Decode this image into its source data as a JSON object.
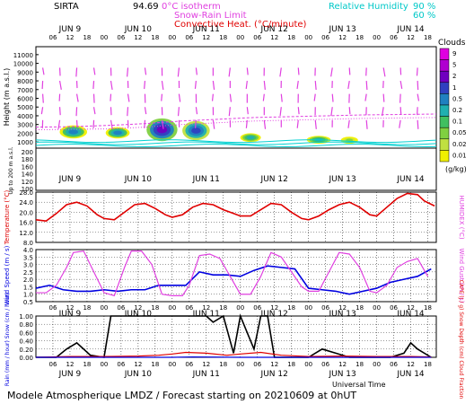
{
  "header": {
    "site": "SIRTA",
    "coord": "94.69",
    "isotherm_label": "0°C isotherm",
    "snow_rain_label": "Snow-Rain Limit",
    "convective_label": "Convective Heat. (°C/minute)",
    "rh_label": "Relative Humidity",
    "rh90": "90 %",
    "rh60": "60 %",
    "clouds_label": "Clouds",
    "clouds_unit": "(g/kg)"
  },
  "footer": {
    "model_text": "Modele Atmospherique LMDZ / Forecast starting on 20210609 at 0hUT",
    "time_axis_label": "Universal Time"
  },
  "colors": {
    "magenta": "#e040e0",
    "red": "#e00000",
    "blue": "#0000e0",
    "cyan": "#00d0d0",
    "black": "#000000"
  },
  "chart_data": [
    {
      "type": "heatmap",
      "panel": "clouds-wind-profile",
      "ylabel": "Height (m a.s.l.)",
      "ylabel_low": "Up to 200 m a.s.l.",
      "yticks_upper": [
        "11000",
        "10000",
        "9000",
        "8000",
        "7000",
        "6000",
        "5000",
        "4000",
        "3000",
        "2000",
        "1000"
      ],
      "yticks_lower": [
        "200",
        "180",
        "160",
        "140",
        "120",
        "100"
      ],
      "day_labels": [
        "JUN 9",
        "JUN 10",
        "JUN 11",
        "JUN 12",
        "JUN 13",
        "JUN 14"
      ],
      "hour_ticks": [
        "06",
        "12",
        "18",
        "00",
        "06",
        "12",
        "18",
        "00",
        "06",
        "12",
        "18",
        "00",
        "06",
        "12",
        "18",
        "00",
        "06",
        "12",
        "18",
        "00",
        "06",
        "12",
        "18"
      ],
      "cloud_scale": [
        "9",
        "5",
        "2",
        "1",
        "0.5",
        "0.2",
        "0.1",
        "0.05",
        "0.02",
        "0.01"
      ],
      "cloud_colors": [
        "#e000e0",
        "#b000d0",
        "#7000c0",
        "#3040c0",
        "#2080c0",
        "#20b0b0",
        "#40c060",
        "#80d040",
        "#c0e040",
        "#f0f000"
      ],
      "cloud_layers": [
        {
          "day": 0.55,
          "width": 0.35,
          "base_m": 1500,
          "top_m": 2800,
          "max_class": "0.5"
        },
        {
          "day": 1.2,
          "width": 0.3,
          "base_m": 1500,
          "top_m": 2600,
          "max_class": "0.5"
        },
        {
          "day": 1.85,
          "width": 0.4,
          "base_m": 1200,
          "top_m": 3600,
          "max_class": "2"
        },
        {
          "day": 2.35,
          "width": 0.35,
          "base_m": 1300,
          "top_m": 3300,
          "max_class": "1"
        },
        {
          "day": 3.15,
          "width": 0.25,
          "base_m": 1100,
          "top_m": 1900,
          "max_class": "0.2"
        },
        {
          "day": 4.15,
          "width": 0.3,
          "base_m": 900,
          "top_m": 1600,
          "max_class": "0.2"
        },
        {
          "day": 4.6,
          "width": 0.2,
          "base_m": 900,
          "top_m": 1500,
          "max_class": "0.05"
        }
      ],
      "isotherm_m": [
        2700,
        2750,
        2900,
        3100,
        3400,
        3600,
        3800,
        3900,
        4000,
        4100,
        4150,
        4200
      ],
      "snow_rain_m": [
        2400,
        2450,
        2500,
        2700,
        3000,
        3200,
        3400,
        3500,
        3600,
        3700,
        3750,
        3800
      ],
      "wind_heights_m": [
        9500,
        8000,
        6500,
        5000,
        3500
      ],
      "wind_times_day": [
        0.1,
        0.35,
        0.6,
        0.85,
        1.1,
        1.35,
        1.6,
        1.85,
        2.1,
        2.35,
        2.6,
        2.85,
        3.1,
        3.35,
        3.6,
        3.85,
        4.1,
        4.35,
        4.6,
        4.85,
        5.1,
        5.35,
        5.6
      ]
    },
    {
      "type": "line",
      "panel": "temperature",
      "ylabel": "Temperature (°C)",
      "ylabel_right": "HUMIDEX (°C)",
      "ylim": [
        8.0,
        28.0
      ],
      "yticks": [
        "28.0",
        "24.0",
        "20.0",
        "16.0",
        "12.0",
        "8.0"
      ],
      "series": [
        {
          "name": "Temperature",
          "x": [
            0.0,
            0.15,
            0.3,
            0.45,
            0.6,
            0.75,
            0.9,
            1.0,
            1.15,
            1.3,
            1.45,
            1.6,
            1.75,
            1.9,
            2.0,
            2.15,
            2.3,
            2.45,
            2.6,
            2.75,
            2.9,
            3.0,
            3.15,
            3.3,
            3.45,
            3.6,
            3.75,
            3.9,
            4.0,
            4.15,
            4.3,
            4.45,
            4.6,
            4.75,
            4.9,
            5.0,
            5.15,
            5.3,
            5.45,
            5.6,
            5.7,
            5.85
          ],
          "values": [
            17.0,
            16.5,
            19.5,
            23.0,
            24.0,
            22.5,
            19.0,
            17.5,
            17.0,
            20.0,
            23.0,
            23.5,
            21.5,
            19.0,
            18.0,
            19.0,
            22.0,
            23.5,
            23.0,
            21.0,
            19.5,
            18.5,
            18.5,
            21.0,
            23.5,
            23.0,
            20.0,
            17.5,
            17.0,
            18.5,
            21.0,
            23.0,
            24.0,
            22.0,
            19.0,
            18.5,
            22.0,
            25.5,
            27.5,
            27.0,
            24.5,
            22.5
          ]
        }
      ]
    },
    {
      "type": "line",
      "panel": "wind",
      "ylabel": "Wind Speed (m / s)",
      "ylabel_right": "Wind Gust (m / s)",
      "ylim": [
        0.5,
        4.0
      ],
      "yticks": [
        "4.0",
        "3.5",
        "3.0",
        "2.5",
        "2.0",
        "1.5",
        "1.0",
        "0.5"
      ],
      "series": [
        {
          "name": "Wind Speed",
          "x": [
            0.0,
            0.2,
            0.4,
            0.6,
            0.8,
            1.0,
            1.2,
            1.4,
            1.6,
            1.8,
            2.0,
            2.2,
            2.4,
            2.6,
            2.8,
            3.0,
            3.2,
            3.4,
            3.6,
            3.8,
            4.0,
            4.2,
            4.4,
            4.6,
            4.8,
            5.0,
            5.2,
            5.4,
            5.6,
            5.8
          ],
          "values": [
            1.4,
            1.6,
            1.3,
            1.2,
            1.2,
            1.3,
            1.2,
            1.3,
            1.3,
            1.6,
            1.6,
            1.6,
            2.5,
            2.3,
            2.3,
            2.2,
            2.6,
            2.9,
            2.8,
            2.7,
            1.4,
            1.3,
            1.2,
            1.0,
            1.2,
            1.4,
            1.8,
            2.0,
            2.2,
            2.7
          ]
        },
        {
          "name": "Wind Gust",
          "x": [
            0.0,
            0.15,
            0.3,
            0.45,
            0.55,
            0.7,
            0.85,
            1.0,
            1.15,
            1.3,
            1.4,
            1.55,
            1.7,
            1.85,
            2.0,
            2.15,
            2.25,
            2.4,
            2.55,
            2.7,
            2.85,
            3.0,
            3.15,
            3.3,
            3.45,
            3.6,
            3.75,
            3.9,
            4.0,
            4.15,
            4.3,
            4.45,
            4.6,
            4.75,
            4.9,
            5.0,
            5.15,
            5.3,
            5.45,
            5.6,
            5.75
          ],
          "values": [
            1.1,
            1.1,
            1.6,
            2.8,
            3.8,
            3.9,
            2.5,
            1.1,
            0.9,
            2.8,
            3.9,
            3.9,
            3.0,
            1.0,
            0.9,
            0.9,
            1.6,
            3.6,
            3.7,
            3.4,
            2.2,
            1.0,
            1.0,
            2.2,
            3.8,
            3.5,
            2.5,
            1.5,
            1.2,
            1.2,
            2.5,
            3.8,
            3.7,
            2.8,
            1.2,
            1.1,
            1.6,
            2.8,
            3.2,
            3.4,
            2.2
          ]
        }
      ]
    },
    {
      "type": "line",
      "panel": "precipitation",
      "ylabel": "Rain (mm / hour) Snow (cm / hour)",
      "ylabel_right": "CAPE (J / g) Snow Depth (cm) Cloud Fraction",
      "ylim": [
        0.0,
        1.0
      ],
      "yticks": [
        "1.00",
        "0.80",
        "0.60",
        "0.40",
        "0.20",
        "0.00"
      ],
      "series": [
        {
          "name": "Cloud Fraction",
          "x": [
            0.0,
            0.3,
            0.45,
            0.6,
            0.8,
            1.0,
            1.1,
            1.2,
            1.3,
            1.4,
            1.5,
            1.6,
            1.7,
            1.8,
            1.9,
            2.0,
            2.1,
            2.2,
            2.3,
            2.4,
            2.5,
            2.6,
            2.75,
            2.9,
            3.0,
            3.1,
            3.2,
            3.3,
            3.4,
            3.5,
            3.6,
            3.7,
            3.8,
            4.0,
            4.2,
            4.4,
            4.6,
            4.8,
            5.0,
            5.2,
            5.4,
            5.5,
            5.6,
            5.8
          ],
          "values": [
            0.0,
            0.0,
            0.2,
            0.35,
            0.05,
            0.0,
            1.0,
            1.0,
            1.0,
            1.0,
            1.0,
            1.0,
            1.0,
            1.0,
            1.0,
            1.0,
            1.0,
            1.0,
            1.0,
            1.0,
            1.0,
            0.85,
            1.0,
            0.1,
            1.0,
            0.6,
            0.2,
            1.0,
            1.0,
            0.0,
            0.0,
            0.0,
            0.0,
            0.0,
            0.2,
            0.1,
            0.0,
            0.0,
            0.0,
            0.0,
            0.1,
            0.35,
            0.2,
            0.0
          ]
        },
        {
          "name": "CAPE",
          "x": [
            0.0,
            0.5,
            1.0,
            1.5,
            1.8,
            2.0,
            2.2,
            2.5,
            2.8,
            3.0,
            3.3,
            3.6,
            4.0,
            4.5,
            5.0,
            5.5,
            5.8
          ],
          "values": [
            0.0,
            0.02,
            0.02,
            0.03,
            0.05,
            0.08,
            0.12,
            0.1,
            0.05,
            0.08,
            0.12,
            0.05,
            0.02,
            0.03,
            0.02,
            0.02,
            0.01
          ]
        },
        {
          "name": "Rain",
          "x": [
            0.0,
            1.0,
            2.0,
            2.3,
            3.0,
            4.0,
            5.0,
            5.8
          ],
          "values": [
            0.0,
            0.0,
            0.0,
            0.01,
            0.0,
            0.0,
            0.0,
            0.0
          ]
        }
      ]
    }
  ]
}
